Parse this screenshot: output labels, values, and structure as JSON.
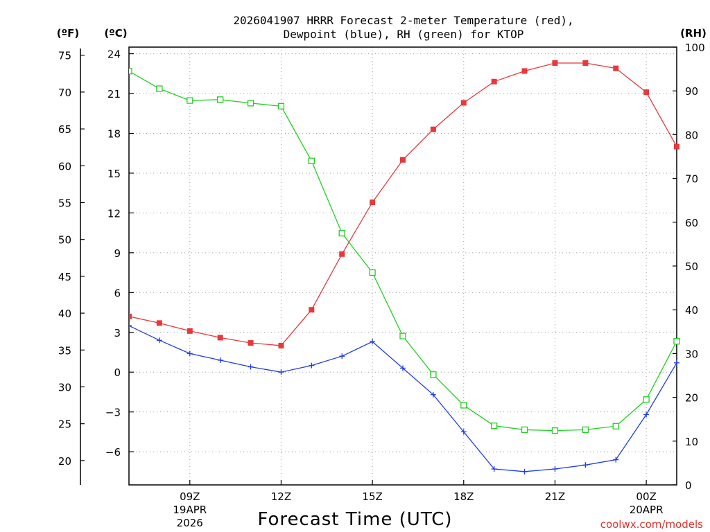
{
  "chart_data": {
    "type": "line",
    "title_line1": "2026041907 HRRR Forecast 2-meter Temperature (red),",
    "title_line2": "Dewpoint (blue), RH (green) for KTOP",
    "units": {
      "fahrenheit": "(ºF)",
      "celsius": "(ºC)",
      "rh": "(RH)"
    },
    "xlabel": "Forecast Time (UTC)",
    "credit": "coolwx.com/models",
    "hours": [
      7,
      8,
      9,
      10,
      11,
      12,
      13,
      14,
      15,
      16,
      17,
      18,
      19,
      20,
      21,
      22,
      23,
      24,
      25
    ],
    "x_ticks": [
      {
        "hour": 9,
        "label": "09Z",
        "sub1": "19APR",
        "sub2": "2026"
      },
      {
        "hour": 12,
        "label": "12Z",
        "sub1": "",
        "sub2": ""
      },
      {
        "hour": 15,
        "label": "15Z",
        "sub1": "",
        "sub2": ""
      },
      {
        "hour": 18,
        "label": "18Z",
        "sub1": "",
        "sub2": ""
      },
      {
        "hour": 21,
        "label": "21Z",
        "sub1": "",
        "sub2": ""
      },
      {
        "hour": 24,
        "label": "00Z",
        "sub1": "20APR",
        "sub2": ""
      }
    ],
    "x_range": [
      7,
      25
    ],
    "celsius_range": [
      -8.5,
      24.5
    ],
    "celsius_ticks": [
      "24",
      "21",
      "18",
      "15",
      "12",
      "9",
      "6",
      "3",
      "0",
      "−3",
      "−6"
    ],
    "fahrenheit_ticks": [
      "75",
      "70",
      "65",
      "60",
      "55",
      "50",
      "45",
      "40",
      "35",
      "30",
      "25",
      "20"
    ],
    "rh_range": [
      0,
      100
    ],
    "rh_ticks": [
      "100",
      "90",
      "80",
      "70",
      "60",
      "50",
      "40",
      "30",
      "20",
      "10",
      "0"
    ],
    "series": [
      {
        "name": "Temperature",
        "color": "#e8383b",
        "axis": "celsius",
        "marker": "filled-square",
        "values": [
          4.2,
          3.7,
          3.1,
          2.6,
          2.2,
          2.0,
          4.7,
          8.9,
          12.8,
          16.0,
          18.3,
          20.3,
          21.9,
          22.7,
          23.3,
          23.3,
          22.9,
          21.1,
          17.0
        ]
      },
      {
        "name": "Dewpoint",
        "color": "#1f3be8",
        "axis": "celsius",
        "marker": "plus",
        "values": [
          3.5,
          2.4,
          1.4,
          0.9,
          0.4,
          0.0,
          0.5,
          1.2,
          2.3,
          0.3,
          -1.7,
          -4.5,
          -7.3,
          -7.5,
          -7.3,
          -7.0,
          -6.6,
          -3.2,
          0.7
        ]
      },
      {
        "name": "RH",
        "color": "#22d022",
        "axis": "rh",
        "marker": "open-square",
        "values": [
          94.5,
          90.5,
          87.8,
          88.0,
          87.2,
          86.5,
          74.0,
          57.5,
          48.5,
          34.0,
          25.2,
          18.2,
          13.5,
          12.6,
          12.4,
          12.6,
          13.4,
          19.5,
          32.8
        ]
      }
    ]
  }
}
